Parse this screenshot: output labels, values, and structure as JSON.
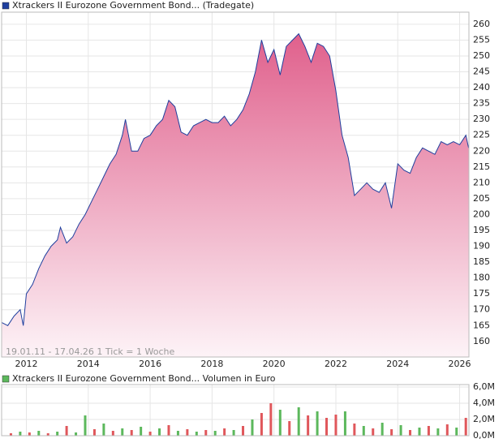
{
  "chart_data": [
    {
      "type": "area",
      "title": "Xtrackers II Eurozone Government Bond... (Tradegate)",
      "annotation": "19.01.11 - 17.04.26   1 Tick = 1 Woche",
      "line_color": "#1f3f9e",
      "fill_top": "#e0608c",
      "fill_bottom": "#fdf3f7",
      "x": [
        2011.2,
        2011.4,
        2011.6,
        2011.8,
        2011.9,
        2012.0,
        2012.2,
        2012.4,
        2012.6,
        2012.8,
        2013.0,
        2013.1,
        2013.3,
        2013.5,
        2013.7,
        2013.9,
        2014.1,
        2014.3,
        2014.5,
        2014.7,
        2014.9,
        2015.1,
        2015.2,
        2015.4,
        2015.6,
        2015.8,
        2016.0,
        2016.2,
        2016.4,
        2016.6,
        2016.8,
        2017.0,
        2017.2,
        2017.4,
        2017.6,
        2017.8,
        2018.0,
        2018.2,
        2018.4,
        2018.6,
        2018.8,
        2019.0,
        2019.2,
        2019.4,
        2019.6,
        2019.8,
        2020.0,
        2020.2,
        2020.4,
        2020.6,
        2020.8,
        2021.0,
        2021.2,
        2021.4,
        2021.6,
        2021.8,
        2022.0,
        2022.2,
        2022.4,
        2022.6,
        2022.8,
        2023.0,
        2023.2,
        2023.4,
        2023.6,
        2023.8,
        2024.0,
        2024.2,
        2024.4,
        2024.6,
        2024.8,
        2025.0,
        2025.2,
        2025.4,
        2025.6,
        2025.8,
        2026.0,
        2026.2,
        2026.29
      ],
      "values": [
        166,
        165,
        168,
        170,
        165,
        175,
        178,
        183,
        187,
        190,
        192,
        196,
        191,
        193,
        197,
        200,
        204,
        208,
        212,
        216,
        219,
        225,
        230,
        220,
        220,
        224,
        225,
        228,
        230,
        236,
        234,
        226,
        225,
        228,
        229,
        230,
        229,
        229,
        231,
        228,
        230,
        233,
        238,
        245,
        255,
        248,
        252,
        244,
        253,
        255,
        257,
        253,
        248,
        254,
        253,
        250,
        239,
        225,
        218,
        206,
        208,
        210,
        208,
        207,
        210,
        202,
        216,
        214,
        213,
        218,
        221,
        220,
        219,
        223,
        222,
        223,
        222,
        225,
        221
      ],
      "xlim": [
        2011.2,
        2026.3
      ],
      "ylim": [
        155.1,
        263.8
      ],
      "xticks": [
        2012,
        2014,
        2016,
        2018,
        2020,
        2022,
        2024,
        2026
      ],
      "yticks": [
        160,
        165,
        170,
        175,
        180,
        185,
        190,
        195,
        200,
        205,
        210,
        215,
        220,
        225,
        230,
        235,
        240,
        245,
        250,
        255,
        260
      ],
      "grid": true
    },
    {
      "type": "bar",
      "title": "Xtrackers II Eurozone Government Bond... Volumen in Euro",
      "x": [
        2011.5,
        2011.8,
        2012.1,
        2012.4,
        2012.7,
        2013.0,
        2013.3,
        2013.6,
        2013.9,
        2014.2,
        2014.5,
        2014.8,
        2015.1,
        2015.4,
        2015.7,
        2016.0,
        2016.3,
        2016.6,
        2016.9,
        2017.2,
        2017.5,
        2017.8,
        2018.1,
        2018.4,
        2018.7,
        2019.0,
        2019.3,
        2019.6,
        2019.9,
        2020.2,
        2020.5,
        2020.8,
        2021.1,
        2021.4,
        2021.7,
        2022.0,
        2022.3,
        2022.6,
        2022.9,
        2023.2,
        2023.5,
        2023.8,
        2024.1,
        2024.4,
        2024.7,
        2025.0,
        2025.3,
        2025.6,
        2025.9,
        2026.2
      ],
      "values": [
        300000,
        500000,
        400000,
        600000,
        300000,
        500000,
        1200000,
        400000,
        2500000,
        800000,
        1500000,
        600000,
        900000,
        700000,
        1100000,
        500000,
        900000,
        1300000,
        600000,
        800000,
        500000,
        700000,
        600000,
        900000,
        700000,
        1200000,
        2000000,
        2800000,
        4000000,
        3200000,
        1800000,
        3500000,
        2500000,
        3000000,
        2200000,
        2600000,
        3000000,
        1500000,
        1200000,
        900000,
        1600000,
        800000,
        1300000,
        700000,
        1000000,
        1200000,
        900000,
        1400000,
        1000000,
        2200000
      ],
      "colors": [
        "#e0575b",
        "#5cb85c",
        "#e0575b",
        "#5cb85c",
        "#e0575b",
        "#5cb85c",
        "#e0575b",
        "#5cb85c",
        "#5cb85c",
        "#e0575b",
        "#5cb85c",
        "#e0575b",
        "#5cb85c",
        "#e0575b",
        "#5cb85c",
        "#e0575b",
        "#5cb85c",
        "#e0575b",
        "#5cb85c",
        "#e0575b",
        "#5cb85c",
        "#e0575b",
        "#5cb85c",
        "#e0575b",
        "#5cb85c",
        "#e0575b",
        "#5cb85c",
        "#e0575b",
        "#e0575b",
        "#5cb85c",
        "#e0575b",
        "#5cb85c",
        "#e0575b",
        "#5cb85c",
        "#e0575b",
        "#e0575b",
        "#5cb85c",
        "#e0575b",
        "#5cb85c",
        "#e0575b",
        "#5cb85c",
        "#e0575b",
        "#5cb85c",
        "#e0575b",
        "#5cb85c",
        "#e0575b",
        "#5cb85c",
        "#e0575b",
        "#5cb85c",
        "#e0575b"
      ],
      "xlim": [
        2011.2,
        2026.3
      ],
      "ylim": [
        0,
        6300000
      ],
      "xticks": [
        2012,
        2014,
        2016,
        2018,
        2020,
        2022,
        2024,
        2026
      ],
      "yticks": [
        {
          "value": 0,
          "label": "0,0M"
        },
        {
          "value": 2000000,
          "label": "2,0M"
        },
        {
          "value": 4000000,
          "label": "4,0M"
        },
        {
          "value": 6000000,
          "label": "6,0M"
        }
      ],
      "grid": true
    }
  ]
}
